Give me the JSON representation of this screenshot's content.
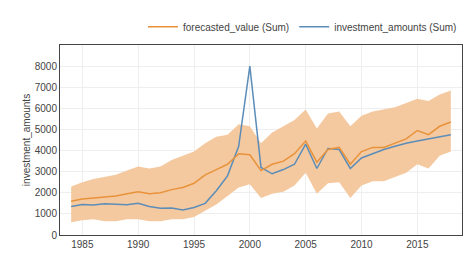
{
  "chart_data": {
    "type": "line",
    "ylabel": "investment_amounts",
    "xlim": [
      1983,
      2019
    ],
    "ylim": [
      0,
      9000
    ],
    "xticks": [
      1985,
      1990,
      1995,
      2000,
      2005,
      2010,
      2015
    ],
    "yticks": [
      0,
      1000,
      2000,
      3000,
      4000,
      5000,
      6000,
      7000,
      8000
    ],
    "grid": true,
    "legend": "upper right",
    "x": [
      1984,
      1985,
      1986,
      1987,
      1988,
      1989,
      1990,
      1991,
      1992,
      1993,
      1994,
      1995,
      1996,
      1997,
      1998,
      1999,
      2000,
      2001,
      2002,
      2003,
      2004,
      2005,
      2006,
      2007,
      2008,
      2009,
      2010,
      2011,
      2012,
      2013,
      2014,
      2015,
      2016,
      2017,
      2018
    ],
    "series": [
      {
        "name": "investment_amounts (Sum)",
        "color": "#5b8db8",
        "values": [
          1350,
          1450,
          1420,
          1480,
          1460,
          1430,
          1500,
          1350,
          1270,
          1280,
          1180,
          1300,
          1500,
          2100,
          2800,
          4200,
          8000,
          3200,
          2900,
          3100,
          3350,
          4300,
          3150,
          4100,
          4050,
          3150,
          3650,
          3850,
          4050,
          4200,
          4350,
          4450,
          4550,
          4650,
          4750
        ]
      },
      {
        "name": "forecasted_value (Sum)",
        "color": "#e8923a",
        "values": [
          1600,
          1700,
          1750,
          1800,
          1850,
          1950,
          2050,
          1950,
          2000,
          2150,
          2250,
          2450,
          2850,
          3100,
          3350,
          3850,
          3800,
          3050,
          3350,
          3500,
          3850,
          4450,
          3450,
          4050,
          4150,
          3350,
          3950,
          4150,
          4150,
          4350,
          4550,
          4950,
          4750,
          5150,
          5350
        ]
      }
    ],
    "band": {
      "color": "#f5c9a0",
      "high": [
        2300,
        2500,
        2650,
        2750,
        2850,
        3050,
        3250,
        3150,
        3250,
        3550,
        3750,
        3950,
        4350,
        4650,
        4750,
        5250,
        5150,
        4350,
        4850,
        5150,
        5450,
        5950,
        5050,
        5750,
        5850,
        5150,
        5650,
        5850,
        5950,
        6050,
        6250,
        6450,
        6350,
        6650,
        6850
      ],
      "low": [
        600,
        700,
        750,
        650,
        650,
        750,
        750,
        650,
        650,
        750,
        750,
        850,
        1150,
        1450,
        1850,
        2250,
        2400,
        1750,
        1950,
        2050,
        2350,
        2950,
        1950,
        2450,
        2500,
        1750,
        2350,
        2550,
        2550,
        2750,
        2950,
        3350,
        3150,
        3750,
        3950
      ]
    }
  }
}
